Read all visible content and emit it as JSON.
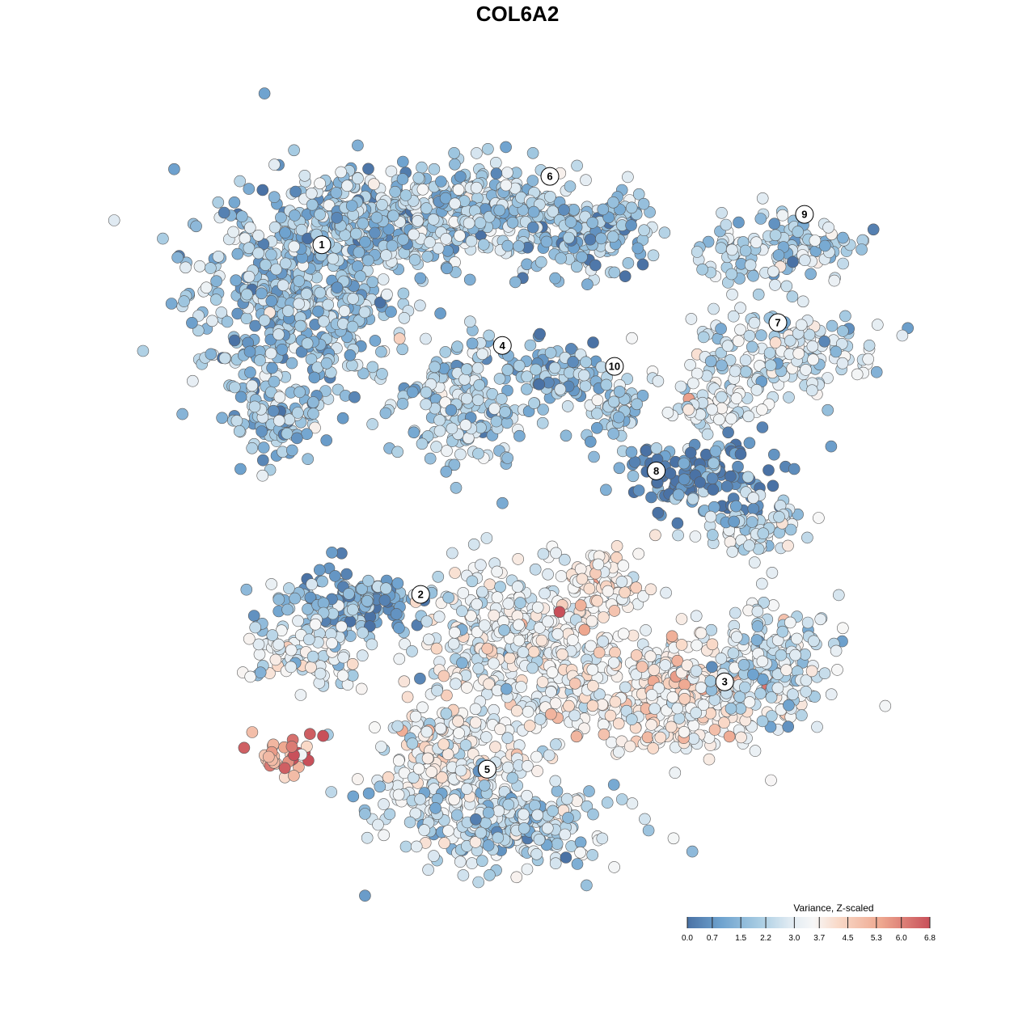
{
  "chart_data": {
    "type": "scatter",
    "title": "COL6A2",
    "xlabel": "",
    "ylabel": "",
    "grid": false,
    "legend": {
      "title": "Variance, Z-scaled",
      "placement": "bottom-right",
      "ticks": [
        "0.0",
        "0.7",
        "1.5",
        "2.2",
        "3.0",
        "3.7",
        "4.5",
        "5.3",
        "6.0",
        "6.8"
      ],
      "range": [
        0.0,
        6.8
      ],
      "colors": [
        "#4a72a5",
        "#6fa3cf",
        "#a9cde3",
        "#dfeaf2",
        "#f7f7f7",
        "#f9dac9",
        "#eea78f",
        "#c8505a"
      ]
    },
    "clusters": [
      {
        "label": "1",
        "x": -12.0,
        "y": 9.8,
        "level": 1.8
      },
      {
        "label": "2",
        "x": -6.8,
        "y": -8.6,
        "level": 1.4
      },
      {
        "label": "3",
        "x": 9.2,
        "y": -13.2,
        "level": 3.9
      },
      {
        "label": "4",
        "x": -2.5,
        "y": 4.5,
        "level": 1.9
      },
      {
        "label": "5",
        "x": -3.3,
        "y": -17.8,
        "level": 3.1
      },
      {
        "label": "6",
        "x": 0.0,
        "y": 13.4,
        "level": 2.0
      },
      {
        "label": "7",
        "x": 12.0,
        "y": 5.7,
        "level": 2.6
      },
      {
        "label": "8",
        "x": 5.6,
        "y": -2.1,
        "level": 0.6
      },
      {
        "label": "9",
        "x": 13.4,
        "y": 11.4,
        "level": 2.1
      },
      {
        "label": "10",
        "x": 3.4,
        "y": 3.4,
        "level": 2.1
      }
    ]
  }
}
